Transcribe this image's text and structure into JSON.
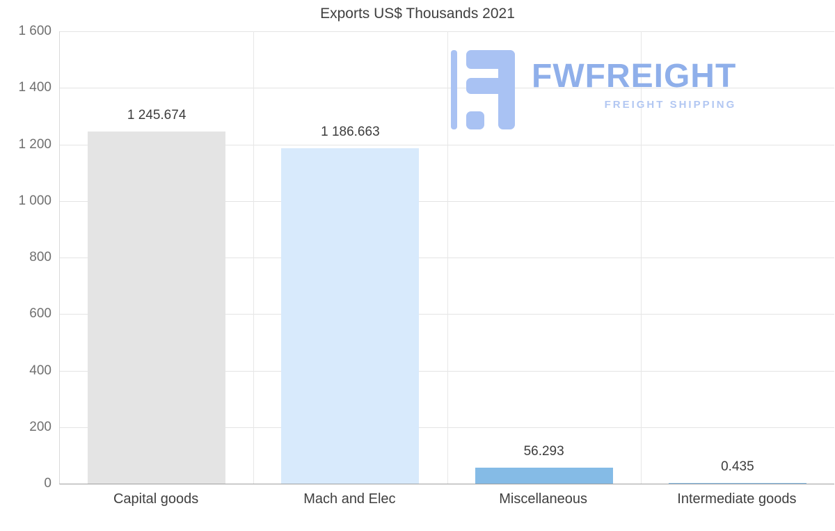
{
  "chart_data": {
    "type": "bar",
    "title": "Exports US$ Thousands 2021",
    "categories": [
      "Capital goods",
      "Mach and Elec",
      "Miscellaneous",
      "Intermediate goods"
    ],
    "values": [
      1245.674,
      1186.663,
      56.293,
      0.435
    ],
    "value_labels": [
      "1 245.674",
      "1 186.663",
      "56.293",
      "0.435"
    ],
    "bar_colors": [
      "#e4e4e4",
      "#d8eafc",
      "#85bbe6",
      "#85bbe6"
    ],
    "xlabel": "",
    "ylabel": "",
    "ylim": [
      0,
      1600
    ],
    "ytick_interval": 200,
    "ytick_labels": [
      "0",
      "200",
      "400",
      "600",
      "800",
      "1 000",
      "1 200",
      "1 400",
      "1 600"
    ],
    "legend": "none",
    "grid": "horizontal gridlines with vertical category separators"
  },
  "logo": {
    "brand": "FWFREIGHT",
    "tagline": "FREIGHT SHIPPING",
    "icon_color": "#a9c2f3",
    "brand_color": "#8fafea",
    "tagline_color": "#b2c7f2"
  }
}
